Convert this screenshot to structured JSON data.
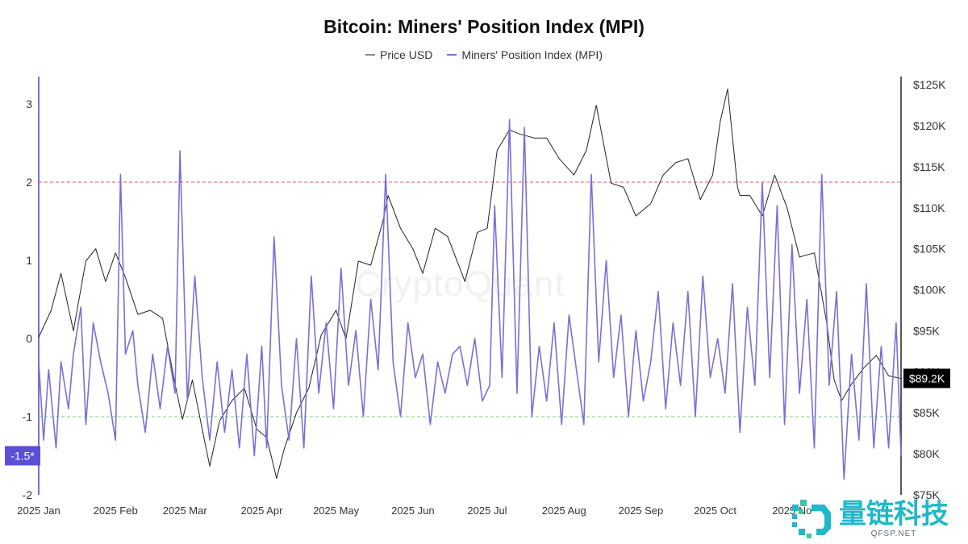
{
  "chart_data": {
    "type": "line",
    "title": "Bitcoin: Miners' Position Index (MPI)",
    "legend": {
      "placement": "top-center"
    },
    "series": [
      {
        "name": "Price USD",
        "axis": "right",
        "color": "#222222",
        "x": [
          "2025-01-01",
          "2025-01-06",
          "2025-01-10",
          "2025-01-15",
          "2025-01-20",
          "2025-01-24",
          "2025-01-28",
          "2025-02-01",
          "2025-02-05",
          "2025-02-10",
          "2025-02-15",
          "2025-02-20",
          "2025-02-25",
          "2025-02-28",
          "2025-03-04",
          "2025-03-08",
          "2025-03-11",
          "2025-03-15",
          "2025-03-20",
          "2025-03-25",
          "2025-03-30",
          "2025-04-03",
          "2025-04-07",
          "2025-04-10",
          "2025-04-15",
          "2025-04-20",
          "2025-04-25",
          "2025-05-01",
          "2025-05-05",
          "2025-05-10",
          "2025-05-15",
          "2025-05-20",
          "2025-05-22",
          "2025-05-27",
          "2025-06-01",
          "2025-06-05",
          "2025-06-10",
          "2025-06-15",
          "2025-06-22",
          "2025-06-27",
          "2025-07-01",
          "2025-07-05",
          "2025-07-10",
          "2025-07-14",
          "2025-07-20",
          "2025-07-25",
          "2025-07-30",
          "2025-08-05",
          "2025-08-10",
          "2025-08-14",
          "2025-08-20",
          "2025-08-25",
          "2025-08-30",
          "2025-09-05",
          "2025-09-10",
          "2025-09-15",
          "2025-09-20",
          "2025-09-25",
          "2025-09-30",
          "2025-10-03",
          "2025-10-06",
          "2025-10-10",
          "2025-10-11",
          "2025-10-15",
          "2025-10-20",
          "2025-10-25",
          "2025-10-30",
          "2025-11-04",
          "2025-11-10",
          "2025-11-15",
          "2025-11-18",
          "2025-11-21",
          "2025-11-25",
          "2025-11-30",
          "2025-12-05",
          "2025-12-10",
          "2025-12-15"
        ],
        "values": [
          94200,
          97500,
          102000,
          95000,
          103500,
          105000,
          101000,
          104500,
          101500,
          97000,
          97500,
          96500,
          88500,
          84200,
          89000,
          83000,
          78500,
          84000,
          86500,
          88000,
          83000,
          82000,
          77000,
          80500,
          85000,
          88000,
          94500,
          97500,
          94000,
          103500,
          103000,
          108500,
          111500,
          107500,
          105000,
          102000,
          107500,
          106500,
          101000,
          107000,
          107500,
          117000,
          119500,
          119000,
          118500,
          118500,
          116000,
          114000,
          117000,
          122500,
          113000,
          112500,
          109000,
          110500,
          114000,
          115500,
          116000,
          111000,
          114000,
          120500,
          124500,
          112500,
          111500,
          111500,
          109000,
          114000,
          110000,
          104000,
          104500,
          96000,
          89000,
          86500,
          88500,
          90500,
          92000,
          89500,
          89200
        ]
      },
      {
        "name": "Miners' Position Index (MPI)",
        "axis": "left",
        "color": "#7b6fd4",
        "x": [
          "2025-01-01",
          "2025-01-03",
          "2025-01-05",
          "2025-01-08",
          "2025-01-10",
          "2025-01-13",
          "2025-01-15",
          "2025-01-18",
          "2025-01-20",
          "2025-01-23",
          "2025-01-26",
          "2025-01-29",
          "2025-02-01",
          "2025-02-03",
          "2025-02-05",
          "2025-02-08",
          "2025-02-10",
          "2025-02-13",
          "2025-02-16",
          "2025-02-19",
          "2025-02-22",
          "2025-02-25",
          "2025-02-27",
          "2025-03-02",
          "2025-03-05",
          "2025-03-08",
          "2025-03-11",
          "2025-03-14",
          "2025-03-17",
          "2025-03-20",
          "2025-03-23",
          "2025-03-26",
          "2025-03-29",
          "2025-04-01",
          "2025-04-03",
          "2025-04-06",
          "2025-04-09",
          "2025-04-12",
          "2025-04-15",
          "2025-04-18",
          "2025-04-21",
          "2025-04-24",
          "2025-04-27",
          "2025-04-30",
          "2025-05-03",
          "2025-05-06",
          "2025-05-09",
          "2025-05-12",
          "2025-05-15",
          "2025-05-18",
          "2025-05-21",
          "2025-05-24",
          "2025-05-27",
          "2025-05-30",
          "2025-06-02",
          "2025-06-05",
          "2025-06-08",
          "2025-06-11",
          "2025-06-14",
          "2025-06-17",
          "2025-06-20",
          "2025-06-23",
          "2025-06-26",
          "2025-06-29",
          "2025-07-02",
          "2025-07-04",
          "2025-07-07",
          "2025-07-10",
          "2025-07-13",
          "2025-07-16",
          "2025-07-19",
          "2025-07-22",
          "2025-07-25",
          "2025-07-28",
          "2025-07-31",
          "2025-08-03",
          "2025-08-06",
          "2025-08-09",
          "2025-08-12",
          "2025-08-15",
          "2025-08-18",
          "2025-08-21",
          "2025-08-24",
          "2025-08-27",
          "2025-08-30",
          "2025-09-02",
          "2025-09-05",
          "2025-09-08",
          "2025-09-11",
          "2025-09-14",
          "2025-09-17",
          "2025-09-20",
          "2025-09-23",
          "2025-09-26",
          "2025-09-29",
          "2025-10-02",
          "2025-10-05",
          "2025-10-08",
          "2025-10-11",
          "2025-10-14",
          "2025-10-17",
          "2025-10-20",
          "2025-10-23",
          "2025-10-26",
          "2025-10-29",
          "2025-11-01",
          "2025-11-04",
          "2025-11-07",
          "2025-11-10",
          "2025-11-13",
          "2025-11-16",
          "2025-11-19",
          "2025-11-22",
          "2025-11-25",
          "2025-11-28",
          "2025-12-01",
          "2025-12-04",
          "2025-12-07",
          "2025-12-10",
          "2025-12-13",
          "2025-12-15"
        ],
        "values": [
          -0.3,
          -1.3,
          -0.4,
          -1.4,
          -0.3,
          -0.9,
          -0.2,
          0.4,
          -1.1,
          0.2,
          -0.3,
          -0.7,
          -1.3,
          2.1,
          -0.2,
          0.1,
          -0.6,
          -1.2,
          -0.2,
          -0.9,
          -0.1,
          -0.7,
          2.4,
          -0.8,
          0.8,
          -0.5,
          -1.3,
          -0.3,
          -1.2,
          -0.4,
          -1.4,
          -0.2,
          -1.5,
          -0.1,
          -1.4,
          1.3,
          -0.6,
          -1.3,
          0.0,
          -1.4,
          0.8,
          -0.7,
          0.2,
          -0.9,
          0.9,
          -0.6,
          0.1,
          -1.0,
          0.5,
          -0.4,
          2.1,
          -0.3,
          -1.0,
          0.2,
          -0.5,
          -0.2,
          -1.1,
          -0.3,
          -0.7,
          -0.2,
          -0.1,
          -0.6,
          0.0,
          -0.8,
          -0.6,
          1.7,
          -0.5,
          2.8,
          -0.7,
          2.7,
          -1.0,
          -0.1,
          -0.8,
          0.2,
          -1.1,
          0.3,
          -0.4,
          -1.1,
          2.1,
          -0.3,
          1.0,
          -0.5,
          0.3,
          -1.0,
          0.1,
          -0.8,
          -0.3,
          0.6,
          -0.9,
          0.2,
          -0.6,
          0.6,
          -1.0,
          0.8,
          -0.5,
          0.0,
          -0.7,
          0.7,
          -1.2,
          0.4,
          -0.6,
          2.0,
          -0.5,
          1.7,
          -1.1,
          1.2,
          -0.7,
          0.5,
          -1.4,
          2.1,
          -0.6,
          0.6,
          -1.8,
          -0.2,
          -1.3,
          0.7,
          -1.4,
          -0.1,
          -1.4,
          0.2,
          -1.5
        ]
      }
    ],
    "y_left": {
      "ticks": [
        "3",
        "2",
        "1",
        "0",
        "-1",
        "-2"
      ],
      "range": [
        -2,
        3.35
      ]
    },
    "y_right": {
      "ticks": [
        "$125K",
        "$120K",
        "$115K",
        "$110K",
        "$105K",
        "$100K",
        "$95K",
        "$90K",
        "$85K",
        "$80K",
        "$75K"
      ],
      "range": [
        75000,
        126000
      ]
    },
    "x_axis": {
      "ticks": [
        "2025 Jan",
        "2025 Feb",
        "2025 Mar",
        "2025 Apr",
        "2025 May",
        "2025 Jun",
        "2025 Jul",
        "2025 Aug",
        "2025 Sep",
        "2025 Oct",
        "2025 No"
      ],
      "tick_dates": [
        "2025-01-01",
        "2025-02-01",
        "2025-03-01",
        "2025-04-01",
        "2025-05-01",
        "2025-06-01",
        "2025-07-01",
        "2025-08-01",
        "2025-09-01",
        "2025-10-01",
        "2025-11-01"
      ],
      "range": [
        "2025-01-01",
        "2025-12-15"
      ]
    },
    "reference_lines": [
      {
        "axis": "left",
        "value": 2,
        "color": "#e55a5a"
      },
      {
        "axis": "left",
        "value": -1,
        "color": "#7ccf7c"
      }
    ],
    "markers": {
      "left": "-1.5*",
      "right": "$89.2K"
    },
    "grid": false
  },
  "watermark": "CryptoQuant",
  "logo": {
    "cn": "量链科技",
    "en": "QFSP.NET"
  }
}
